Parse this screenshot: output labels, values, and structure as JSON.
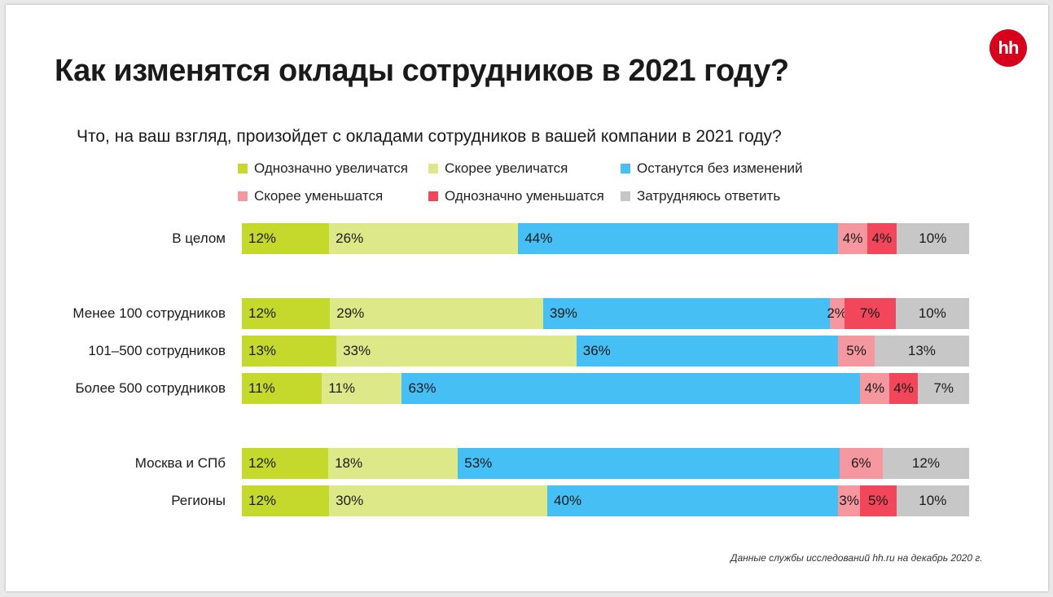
{
  "title": "Как изменятся оклады сотрудников в 2021 году?",
  "logo_text": "hh",
  "source_note": "Данные службы исследований hh.ru на декабрь 2020 г.",
  "chart_data": {
    "type": "bar",
    "orientation": "horizontal",
    "stacked": true,
    "title": "Что, на ваш взгляд, произойдет с окладами сотрудников в вашей компании в 2021 году?",
    "categories": [
      "В целом",
      "Менее 100 сотрудников",
      "101–500 сотрудников",
      "Более 500 сотрудников",
      "Москва и СПб",
      "Регионы"
    ],
    "series": [
      {
        "name": "Однозначно увеличатся",
        "color": "#c5d92d",
        "values": [
          12,
          12,
          13,
          11,
          12,
          12
        ],
        "labels": [
          "12%",
          "12%",
          "13%",
          "11%",
          "12%",
          "12%"
        ]
      },
      {
        "name": "Скорее увеличатся",
        "color": "#dde889",
        "values": [
          26,
          29,
          33,
          11,
          18,
          30
        ],
        "labels": [
          "26%",
          "29%",
          "33%",
          "11%",
          "18%",
          "30%"
        ]
      },
      {
        "name": "Останутся без изменений",
        "color": "#45bff4",
        "values": [
          44,
          39,
          36,
          63,
          53,
          40
        ],
        "labels": [
          "44%",
          "39%",
          "36%",
          "63%",
          "53%",
          "40%"
        ]
      },
      {
        "name": "Скорее уменьшатся",
        "color": "#f4979f",
        "values": [
          4,
          2,
          5,
          4,
          6,
          3
        ],
        "labels": [
          "4%",
          "2%",
          "5%",
          "4%",
          "6%",
          "3%"
        ]
      },
      {
        "name": "Однозначно уменьшатся",
        "color": "#f2475a",
        "values": [
          4,
          7,
          0,
          4,
          0,
          5
        ],
        "labels": [
          "4%",
          "7%",
          "",
          "4%",
          "",
          "5%"
        ]
      },
      {
        "name": "Затрудняюсь ответить",
        "color": "#c7c7c7",
        "values": [
          10,
          10,
          13,
          7,
          12,
          10
        ],
        "labels": [
          "10%",
          "10%",
          "13%",
          "7%",
          "12%",
          "10%"
        ]
      }
    ],
    "legend_position": "top",
    "xlim": [
      0,
      100
    ],
    "grid": false
  }
}
